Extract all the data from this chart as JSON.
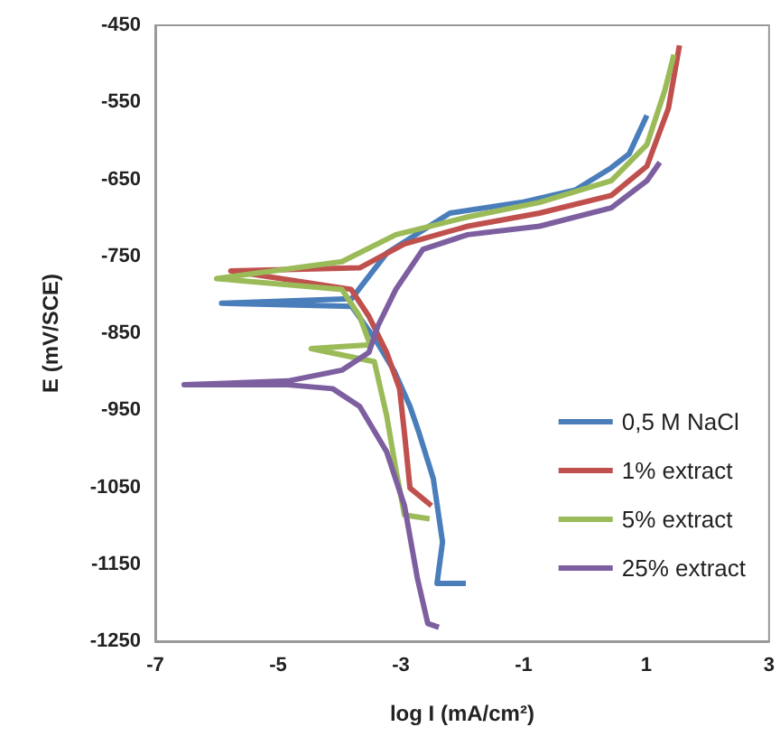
{
  "chart_data": {
    "type": "line",
    "xlabel": "log I (mA/cm²)",
    "ylabel": "E (mV/SCE)",
    "xlim": [
      -7,
      3
    ],
    "xticks": [
      -7,
      -5,
      -3,
      -1,
      1,
      3
    ],
    "ylim": [
      -1250,
      -450
    ],
    "yticks": [
      -450,
      -550,
      -650,
      -750,
      -850,
      -950,
      -1050,
      -1150,
      -1250
    ],
    "grid": false,
    "legend": "bottom right",
    "marker": "none",
    "line_style": "solid",
    "series": [
      {
        "name": "0,5 M NaCl",
        "color": "#4a7ebb",
        "x": [
          -1.94,
          -2.41,
          -2.32,
          -2.47,
          -2.7,
          -2.85,
          -3.1,
          -3.4,
          -3.8,
          -5.92,
          -3.8,
          -3.23,
          -2.2,
          -1.03,
          -0.16,
          0.43,
          0.72,
          1.01
        ],
        "values": [
          -1175,
          -1175,
          -1121,
          -1039,
          -980,
          -945,
          -900,
          -860,
          -815,
          -811,
          -805,
          -746,
          -694,
          -680,
          -664,
          -635,
          -617,
          -567
        ]
      },
      {
        "name": "1% extract",
        "color": "#c0504d",
        "x": [
          -2.5,
          -2.85,
          -2.94,
          -3.02,
          -3.23,
          -3.52,
          -3.81,
          -5.77,
          -3.67,
          -2.94,
          -1.91,
          -0.74,
          0.43,
          1.01,
          1.36,
          1.54
        ],
        "values": [
          -1074,
          -1051,
          -980,
          -922,
          -875,
          -828,
          -793,
          -769,
          -765,
          -734,
          -711,
          -694,
          -671,
          -633,
          -558,
          -476
        ]
      },
      {
        "name": "5% extract",
        "color": "#9bbb59",
        "x": [
          -2.53,
          -2.94,
          -3.08,
          -3.23,
          -3.43,
          -4.46,
          -3.5,
          -3.67,
          -3.96,
          -6.0,
          -3.96,
          -3.08,
          -1.91,
          -0.74,
          0.43,
          1.01,
          1.3,
          1.45
        ],
        "values": [
          -1091,
          -1086,
          -1027,
          -957,
          -887,
          -870,
          -865,
          -828,
          -793,
          -779,
          -757,
          -722,
          -699,
          -680,
          -652,
          -605,
          -535,
          -488
        ]
      },
      {
        "name": "25% extract",
        "color": "#7d5fa0",
        "x": [
          -2.38,
          -2.56,
          -2.73,
          -2.94,
          -3.23,
          -3.67,
          -4.11,
          -4.84,
          -6.53,
          -4.84,
          -3.96,
          -3.52,
          -3.37,
          -3.08,
          -2.64,
          -1.91,
          -0.74,
          0.43,
          1.01,
          1.22
        ],
        "values": [
          -1232,
          -1227,
          -1168,
          -1074,
          -1004,
          -945,
          -922,
          -917,
          -917,
          -912,
          -898,
          -875,
          -840,
          -793,
          -741,
          -722,
          -711,
          -687,
          -652,
          -628
        ]
      }
    ]
  }
}
